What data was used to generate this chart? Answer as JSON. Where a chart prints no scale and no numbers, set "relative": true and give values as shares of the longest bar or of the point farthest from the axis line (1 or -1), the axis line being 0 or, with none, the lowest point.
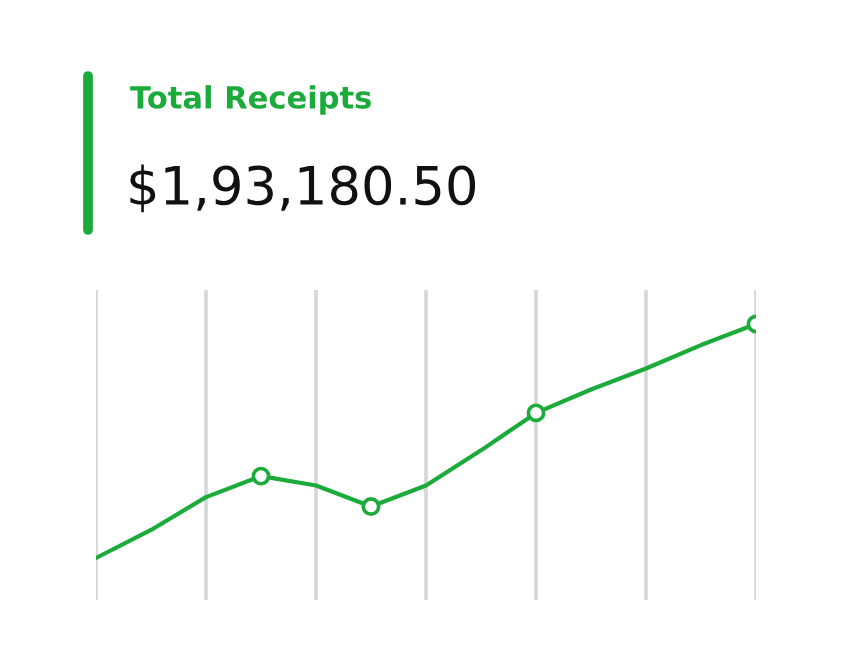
{
  "chart_data": {
    "type": "line",
    "title": "Total Receipts",
    "subtitle": "$1,93,180.50",
    "relative": true,
    "categories": [
      null,
      null,
      null,
      null,
      null,
      null,
      null,
      null,
      null,
      null,
      null,
      null,
      null
    ],
    "grid": "x",
    "line_style": "solid",
    "series": [
      {
        "color": "#1aab3a",
        "values": [
          0,
          0.12,
          0.26,
          0.35,
          0.31,
          0.22,
          0.31,
          0.46,
          0.62,
          0.72,
          0.81,
          0.91,
          1.0
        ]
      }
    ]
  }
}
